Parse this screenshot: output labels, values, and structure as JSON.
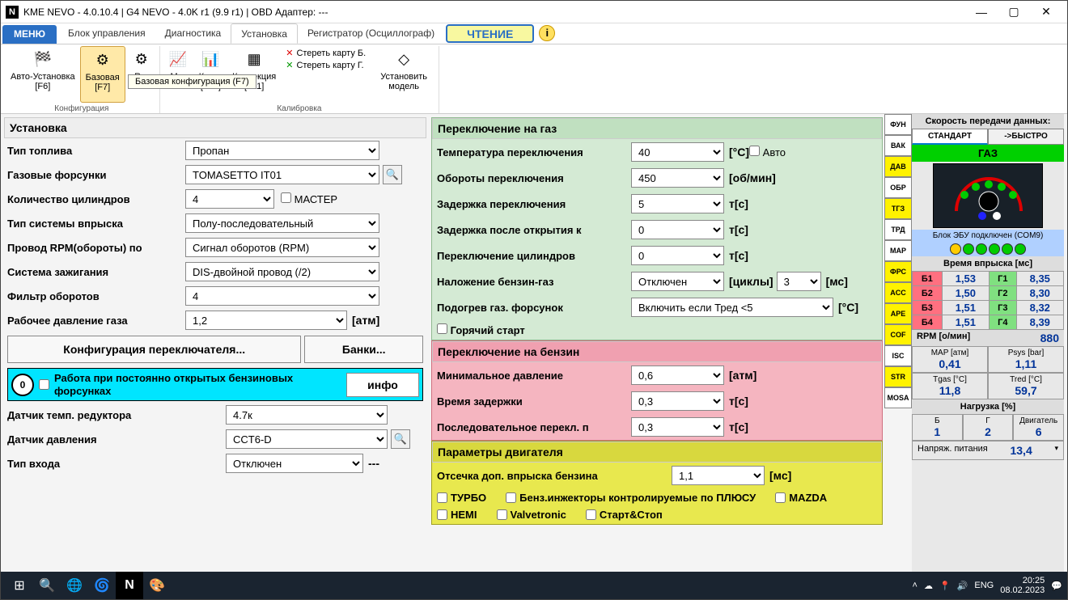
{
  "title": "KME NEVO - 4.0.10.4  |  G4 NEVO - 4.0K r1 (9.9 r1)  |  OBD Адаптер: ---",
  "menu_btn": "МЕНЮ",
  "tabs": [
    "Блок управления",
    "Диагностика",
    "Установка",
    "Регистратор (Осциллограф)"
  ],
  "read_btn": "ЧТЕНИЕ",
  "ribbon": {
    "group1_label": "Конфигурация",
    "group2_label": "Калибровка",
    "auto": {
      "label": "Авто-Установка",
      "key": "[F6]"
    },
    "base": {
      "label": "Базовая",
      "key": "[F7]"
    },
    "r_item": {
      "label": "R...",
      "key": ""
    },
    "m_item": {
      "label": "M...",
      "key": ""
    },
    "map": {
      "label": "Карта",
      "key": "[F10]"
    },
    "corr": {
      "label": "Коррекция",
      "key": "[F11]"
    },
    "erase_b": "Стереть карту Б.",
    "erase_g": "Стереть карту Г.",
    "set_model": "Установить модель",
    "tooltip": "Базовая конфигурация (F7)"
  },
  "left": {
    "head": "Установка",
    "fuel_type": {
      "lbl": "Тип топлива",
      "val": "Пропан"
    },
    "injectors": {
      "lbl": "Газовые форсунки",
      "val": "TOMASETTO IT01"
    },
    "cylinders": {
      "lbl": "Количество цилиндров",
      "val": "4",
      "master": "МАСТЕР"
    },
    "inj_sys": {
      "lbl": "Тип системы впрыска",
      "val": "Полу-последовательный"
    },
    "rpm_wire": {
      "lbl": "Провод RPM(обороты) по",
      "val": "Сигнал оборотов (RPM)"
    },
    "ignition": {
      "lbl": "Система зажигания",
      "val": "DIS-двойной провод (/2)"
    },
    "rpm_filter": {
      "lbl": "Фильтр оборотов",
      "val": "4"
    },
    "work_press": {
      "lbl": "Рабочее давление газа",
      "val": "1,2",
      "unit": "[атм]"
    },
    "cfg_btn": "Конфигурация переключателя...",
    "banks_btn": "Банки...",
    "cyan": {
      "num": "0",
      "txt": "Работа при постоянно открытых бензиновых форсунках",
      "info": "инфо"
    },
    "temp_sensor": {
      "lbl": "Датчик темп. редуктора",
      "val": "4.7к"
    },
    "press_sensor": {
      "lbl": "Датчик давления",
      "val": "CCT6-D"
    },
    "input_type": {
      "lbl": "Тип входа",
      "val": "Отключен",
      "unit": "---"
    }
  },
  "gas": {
    "head": "Переключение на газ",
    "temp": {
      "lbl": "Температура переключения",
      "val": "40",
      "unit": "[°C]",
      "auto": "Авто"
    },
    "rpm": {
      "lbl": "Обороты переключения",
      "val": "450",
      "unit": "[об/мин]"
    },
    "delay": {
      "lbl": "Задержка переключения",
      "val": "5",
      "unit": "т[c]"
    },
    "delay_open": {
      "lbl": "Задержка после открытия к",
      "val": "0",
      "unit": "т[c]"
    },
    "cyl_switch": {
      "lbl": "Переключение цилиндров",
      "val": "0",
      "unit": "т[c]"
    },
    "overlap": {
      "lbl": "Наложение бензин-газ",
      "val": "Отключен",
      "unit": "[циклы]",
      "val2": "3",
      "unit2": "[мс]"
    },
    "heat": {
      "lbl": "Подогрев газ. форсунок",
      "val": "Включить если Тред <5",
      "unit": "[°C]"
    },
    "hot_start": "Горячий старт"
  },
  "petrol": {
    "head": "Переключение на бензин",
    "min_press": {
      "lbl": "Минимальное давление",
      "val": "0,6",
      "unit": "[атм]"
    },
    "delay": {
      "lbl": "Время задержки",
      "val": "0,3",
      "unit": "т[c]"
    },
    "seq": {
      "lbl": "Последовательное перекл. п",
      "val": "0,3",
      "unit": "т[c]"
    }
  },
  "engine": {
    "head": "Параметры двигателя",
    "cutoff": {
      "lbl": "Отсечка доп. впрыска бензина",
      "val": "1,1",
      "unit": "[мс]"
    },
    "chks": [
      "ТУРБО",
      "Бенз.инжекторы контролируемые по ПЛЮСУ",
      "MAZDA",
      "HEMI",
      "Valvetronic",
      "Старт&Стоп"
    ]
  },
  "side_tabs": [
    "ФУН",
    "ВАК",
    "ДАВ",
    "ОБР",
    "ТГЗ",
    "ТРД",
    "MAP",
    "ФРС",
    "ACC",
    "APE",
    "COF",
    "ISC",
    "STR",
    "MOSA"
  ],
  "side_tab_colors": [
    "#fff",
    "#fff",
    "#fff200",
    "#fff",
    "#fff200",
    "#fff",
    "#fff",
    "#fff200",
    "#fff200",
    "#fff200",
    "#fff200",
    "#fff",
    "#fff200",
    "#fff"
  ],
  "rp": {
    "speed_head": "Скорость передачи данных:",
    "std": "СТАНДАРТ",
    "fast": "->БЫСТРО",
    "gas": "ГАЗ",
    "status": "Блок ЭБУ подключен (COM9)",
    "inj_head": "Время впрыска [мс]",
    "inj_rows": [
      {
        "l": "Б1",
        "lv": "1,53",
        "lc": "#ff7080",
        "r": "Г1",
        "rv": "8,35",
        "rc": "#80e080"
      },
      {
        "l": "Б2",
        "lv": "1,50",
        "lc": "#ff7080",
        "r": "Г2",
        "rv": "8,30",
        "rc": "#80e080"
      },
      {
        "l": "Б3",
        "lv": "1,51",
        "lc": "#ff7080",
        "r": "Г3",
        "rv": "8,32",
        "rc": "#80e080"
      },
      {
        "l": "Б4",
        "lv": "1,51",
        "lc": "#ff7080",
        "r": "Г4",
        "rv": "8,39",
        "rc": "#80e080"
      }
    ],
    "rpm": {
      "lbl": "RPM [о/мин]",
      "val": "880"
    },
    "map": {
      "lbl": "MAP [атм]",
      "val": "0,41"
    },
    "psys": {
      "lbl": "Psys [bar]",
      "val": "1,11"
    },
    "tgas": {
      "lbl": "Tgas [°C]",
      "val": "11,8"
    },
    "tred": {
      "lbl": "Tred [°C]",
      "val": "59,7"
    },
    "load_head": "Нагрузка [%]",
    "load": [
      {
        "l": "Б",
        "v": "1"
      },
      {
        "l": "Г",
        "v": "2"
      },
      {
        "l": "Двигатель",
        "v": "6"
      }
    ],
    "volt": {
      "lbl": "Напряж. питания",
      "val": "13,4"
    }
  },
  "taskbar": {
    "lang": "ENG",
    "time": "20:25",
    "date": "08.02.2023"
  }
}
